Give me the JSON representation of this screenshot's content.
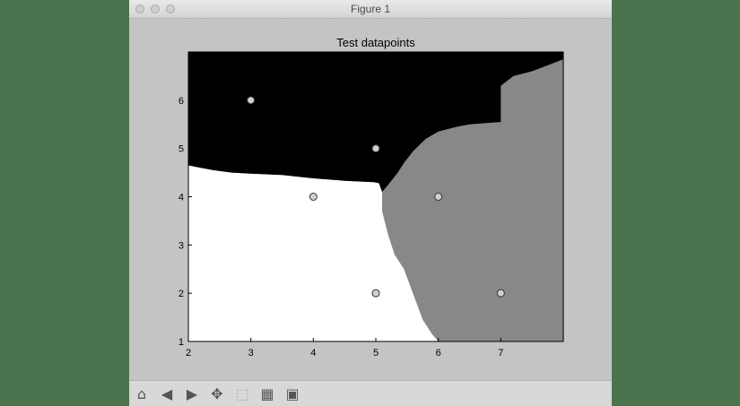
{
  "window": {
    "title": "Figure 1"
  },
  "toolbar": {
    "buttons": [
      {
        "name": "home-button",
        "icon": "home-icon",
        "glyph": "⌂"
      },
      {
        "name": "back-button",
        "icon": "back-arrow-icon",
        "glyph": "◀"
      },
      {
        "name": "forward-button",
        "icon": "forward-arrow-icon",
        "glyph": "▶"
      },
      {
        "name": "pan-button",
        "icon": "pan-arrows-icon",
        "glyph": "✥"
      },
      {
        "name": "zoom-button",
        "icon": "zoom-rectangle-icon",
        "glyph": "⬚"
      },
      {
        "name": "configure-subplots-button",
        "icon": "subplots-icon",
        "glyph": "▦"
      },
      {
        "name": "save-button",
        "icon": "save-disk-icon",
        "glyph": "▣"
      }
    ]
  },
  "chart_data": {
    "type": "scatter",
    "title": "Test datapoints",
    "xlabel": "",
    "ylabel": "",
    "xlim": [
      2,
      8
    ],
    "ylim": [
      1,
      7
    ],
    "xticks": [
      2,
      3,
      4,
      5,
      6,
      7
    ],
    "yticks": [
      1,
      2,
      3,
      4,
      5,
      6
    ],
    "grid": false,
    "background": "decision regions (black, white, gray)",
    "region_colors": {
      "top": "#000000",
      "left": "#ffffff",
      "right": "#888888"
    },
    "point_color": "#d0d0d0",
    "points": [
      {
        "x": 3,
        "y": 6
      },
      {
        "x": 5,
        "y": 5
      },
      {
        "x": 4,
        "y": 4
      },
      {
        "x": 6,
        "y": 4
      },
      {
        "x": 5,
        "y": 2
      },
      {
        "x": 7,
        "y": 2
      }
    ],
    "boundaries": {
      "black_white": [
        [
          2,
          4.65
        ],
        [
          2.2,
          4.6
        ],
        [
          2.4,
          4.55
        ],
        [
          2.7,
          4.5
        ],
        [
          3,
          4.48
        ],
        [
          3.5,
          4.45
        ],
        [
          4,
          4.38
        ],
        [
          4.5,
          4.33
        ],
        [
          4.97,
          4.3
        ],
        [
          5.05,
          4.28
        ],
        [
          5.1,
          4.1
        ]
      ],
      "gray_white": [
        [
          5.1,
          4.1
        ],
        [
          5.1,
          3.7
        ],
        [
          5.2,
          3.2
        ],
        [
          5.3,
          2.8
        ],
        [
          5.45,
          2.5
        ],
        [
          5.55,
          2.15
        ],
        [
          5.65,
          1.8
        ],
        [
          5.75,
          1.45
        ],
        [
          5.9,
          1.15
        ],
        [
          6,
          1
        ]
      ],
      "black_gray": [
        [
          5.1,
          4.1
        ],
        [
          5.2,
          4.25
        ],
        [
          5.35,
          4.5
        ],
        [
          5.45,
          4.7
        ],
        [
          5.6,
          4.95
        ],
        [
          5.8,
          5.2
        ],
        [
          6,
          5.35
        ],
        [
          6.3,
          5.45
        ],
        [
          6.5,
          5.5
        ],
        [
          6.8,
          5.53
        ],
        [
          7,
          5.55
        ],
        [
          7,
          6.3
        ],
        [
          7.2,
          6.5
        ],
        [
          7.5,
          6.6
        ],
        [
          7.8,
          6.75
        ],
        [
          8,
          6.85
        ]
      ]
    }
  }
}
